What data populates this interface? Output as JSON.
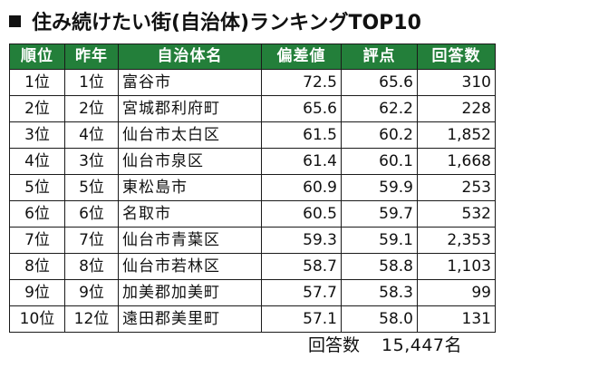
{
  "title": "住み続けたい街(自治体)ランキングTOP10",
  "table": {
    "headers": [
      "順位",
      "昨年",
      "自治体名",
      "偏差値",
      "評点",
      "回答数"
    ],
    "rows": [
      {
        "rank": "1位",
        "prev": "1位",
        "name": "富谷市",
        "deviation": "72.5",
        "score": "65.6",
        "responses": "310"
      },
      {
        "rank": "2位",
        "prev": "2位",
        "name": "宮城郡利府町",
        "deviation": "65.6",
        "score": "62.2",
        "responses": "228"
      },
      {
        "rank": "3位",
        "prev": "4位",
        "name": "仙台市太白区",
        "deviation": "61.5",
        "score": "60.2",
        "responses": "1,852"
      },
      {
        "rank": "4位",
        "prev": "3位",
        "name": "仙台市泉区",
        "deviation": "61.4",
        "score": "60.1",
        "responses": "1,668"
      },
      {
        "rank": "5位",
        "prev": "5位",
        "name": "東松島市",
        "deviation": "60.9",
        "score": "59.9",
        "responses": "253"
      },
      {
        "rank": "6位",
        "prev": "6位",
        "name": "名取市",
        "deviation": "60.5",
        "score": "59.7",
        "responses": "532"
      },
      {
        "rank": "7位",
        "prev": "7位",
        "name": "仙台市青葉区",
        "deviation": "59.3",
        "score": "59.1",
        "responses": "2,353"
      },
      {
        "rank": "8位",
        "prev": "8位",
        "name": "仙台市若林区",
        "deviation": "58.7",
        "score": "58.8",
        "responses": "1,103"
      },
      {
        "rank": "9位",
        "prev": "9位",
        "name": "加美郡加美町",
        "deviation": "57.7",
        "score": "58.3",
        "responses": "99"
      },
      {
        "rank": "10位",
        "prev": "12位",
        "name": "遠田郡美里町",
        "deviation": "57.1",
        "score": "58.0",
        "responses": "131"
      }
    ]
  },
  "footer": {
    "label": "回答数",
    "value": "15,447名"
  },
  "colors": {
    "header_bg": "#237f3a",
    "header_text": "#ffffff"
  }
}
